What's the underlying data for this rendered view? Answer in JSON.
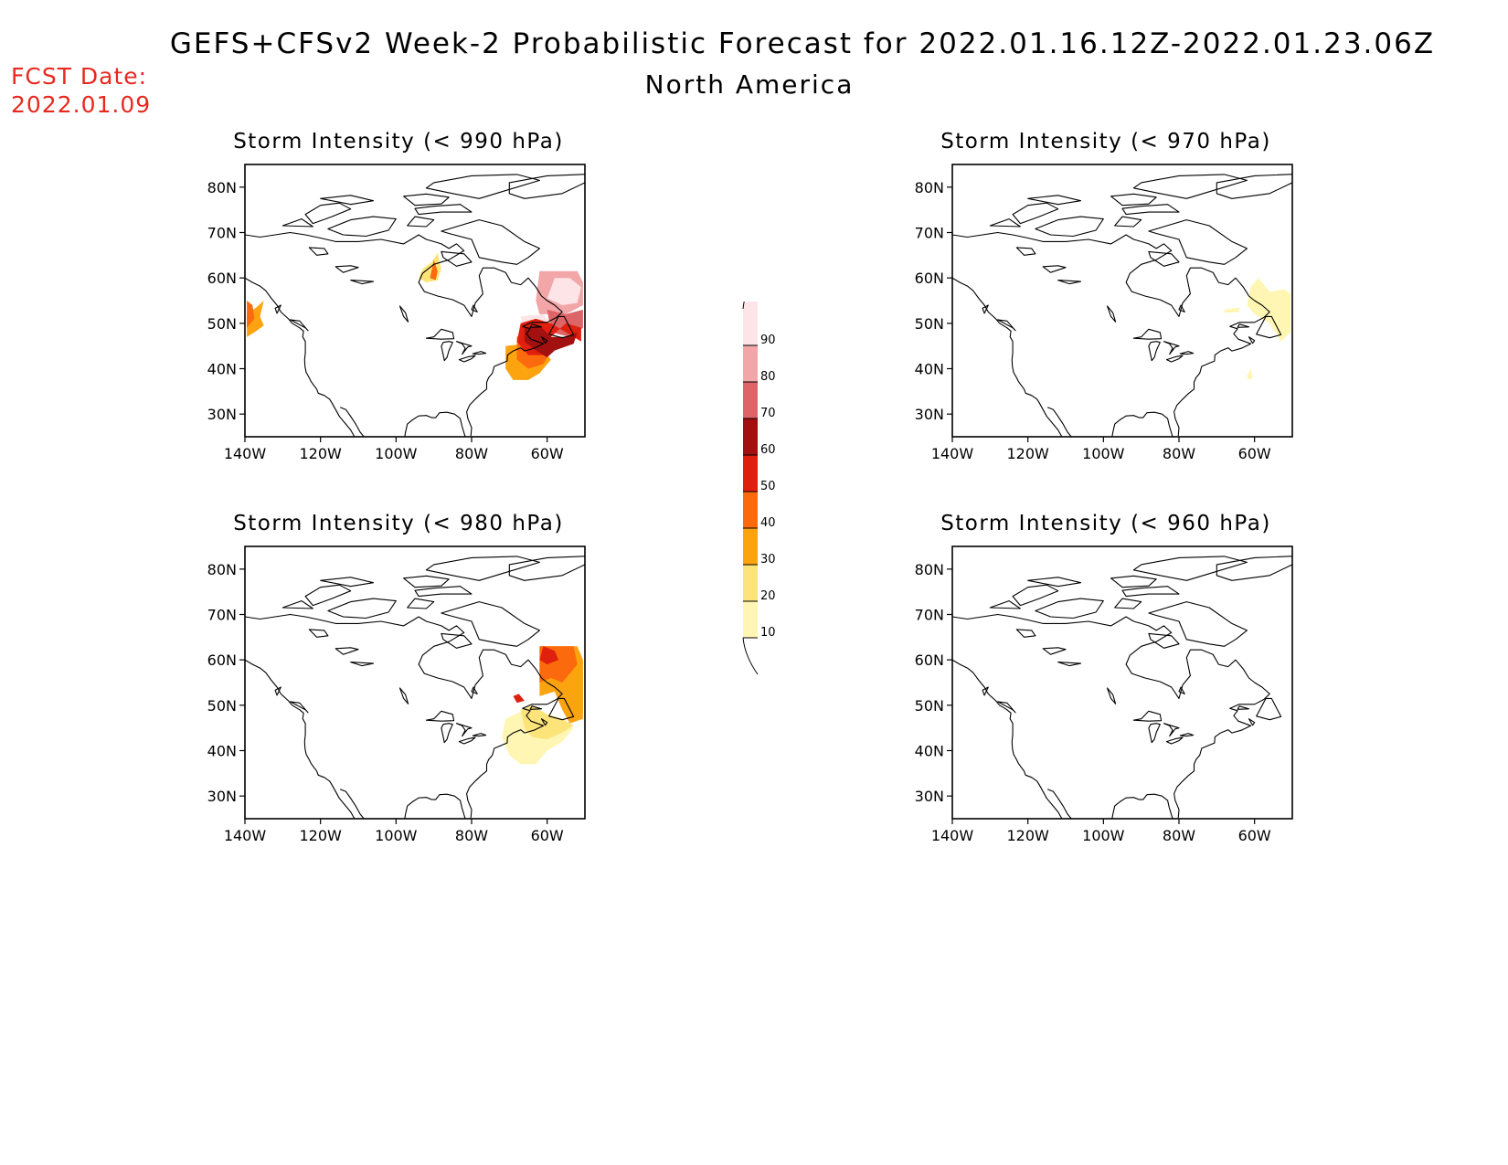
{
  "header": {
    "title": "GEFS+CFSv2 Week-2 Probabilistic Forecast for 2022.01.16.12Z-2022.01.23.06Z",
    "subtitle": "North America",
    "fcst_label": "FCST Date:",
    "fcst_date": "2022.01.09"
  },
  "colors": {
    "c10": "#fff6b3",
    "c20": "#fde47a",
    "c30": "#fca310",
    "c40": "#fb6a0c",
    "c50": "#e0200e",
    "c60": "#a31010",
    "c70": "#de6468",
    "c80": "#f2a6a8",
    "c90": "#fde4e6"
  },
  "colorbar": {
    "levels": [
      "10",
      "20",
      "30",
      "40",
      "50",
      "60",
      "70",
      "80",
      "90"
    ]
  },
  "map_axes": {
    "lat_labels": [
      "80N",
      "70N",
      "60N",
      "50N",
      "40N",
      "30N"
    ],
    "lon_labels": [
      "140W",
      "120W",
      "100W",
      "80W",
      "60W"
    ]
  },
  "panels": [
    {
      "id": "p990",
      "title": "Storm Intensity (< 990 hPa)",
      "regions": [
        {
          "level": "c30",
          "pts": [
            [
              -139.5,
              52
            ],
            [
              -137,
              53.5
            ],
            [
              -135,
              55
            ],
            [
              -136,
              51.5
            ],
            [
              -135,
              49.5
            ],
            [
              -137.5,
              48
            ],
            [
              -139.5,
              47
            ]
          ]
        },
        {
          "level": "c40",
          "pts": [
            [
              -139.5,
              55
            ],
            [
              -138,
              54
            ],
            [
              -137.5,
              51
            ],
            [
              -139.5,
              49
            ]
          ]
        },
        {
          "level": "c20",
          "pts": [
            [
              -93,
              62
            ],
            [
              -90.5,
              63.5
            ],
            [
              -89,
              65.5
            ],
            [
              -88,
              62
            ],
            [
              -89,
              59.5
            ],
            [
              -92,
              59
            ],
            [
              -94,
              60
            ]
          ]
        },
        {
          "level": "c40",
          "pts": [
            [
              -90,
              64
            ],
            [
              -89,
              61.5
            ],
            [
              -89.5,
              59.5
            ],
            [
              -91,
              60
            ]
          ]
        },
        {
          "level": "c80",
          "pts": [
            [
              -62,
              61.5
            ],
            [
              -52,
              61.5
            ],
            [
              -50.5,
              59
            ],
            [
              -50.5,
              54
            ],
            [
              -55,
              52
            ],
            [
              -62,
              52
            ],
            [
              -63,
              55
            ]
          ]
        },
        {
          "level": "c90",
          "pts": [
            [
              -60,
              55.5
            ],
            [
              -56,
              54
            ],
            [
              -52,
              54.5
            ],
            [
              -51,
              58
            ],
            [
              -54,
              60
            ],
            [
              -58,
              60
            ]
          ]
        },
        {
          "level": "c70",
          "pts": [
            [
              -60,
              53
            ],
            [
              -55,
              52
            ],
            [
              -50.5,
              53
            ],
            [
              -50.5,
              49
            ],
            [
              -54,
              47
            ],
            [
              -59,
              48
            ]
          ]
        },
        {
          "level": "c90",
          "pts": [
            [
              -67,
              51.5
            ],
            [
              -61,
              52
            ],
            [
              -59,
              50
            ],
            [
              -61,
              48.5
            ],
            [
              -66,
              48.5
            ]
          ]
        },
        {
          "level": "c30",
          "pts": [
            [
              -71,
              45
            ],
            [
              -66,
              45.5
            ],
            [
              -61,
              44
            ],
            [
              -59,
              42
            ],
            [
              -62,
              39
            ],
            [
              -65,
              37.5
            ],
            [
              -69,
              37.5
            ],
            [
              -71,
              40
            ]
          ]
        },
        {
          "level": "c40",
          "pts": [
            [
              -68,
              47
            ],
            [
              -65,
              48.5
            ],
            [
              -61,
              47
            ],
            [
              -59,
              44
            ],
            [
              -61,
              41
            ],
            [
              -65,
              40
            ],
            [
              -68,
              42
            ]
          ]
        },
        {
          "level": "c50",
          "pts": [
            [
              -67,
              50
            ],
            [
              -63,
              51
            ],
            [
              -59,
              50
            ],
            [
              -55,
              48
            ],
            [
              -51,
              46
            ],
            [
              -51,
              49
            ],
            [
              -55,
              50
            ],
            [
              -59,
              47
            ],
            [
              -61,
              43
            ],
            [
              -65,
              43
            ],
            [
              -68,
              46
            ]
          ]
        },
        {
          "level": "c60",
          "pts": [
            [
              -66,
              49
            ],
            [
              -62,
              49.5
            ],
            [
              -59,
              47
            ],
            [
              -55,
              47
            ],
            [
              -52,
              48
            ],
            [
              -53,
              45.5
            ],
            [
              -58,
              44
            ],
            [
              -60,
              42.5
            ],
            [
              -63,
              44
            ],
            [
              -66,
              46
            ]
          ]
        }
      ]
    },
    {
      "id": "p970",
      "title": "Storm Intensity (< 970 hPa)",
      "regions": [
        {
          "level": "c10",
          "pts": [
            [
              -61,
              58
            ],
            [
              -59,
              60
            ],
            [
              -56,
              57
            ],
            [
              -52,
              57.5
            ],
            [
              -50.5,
              56.5
            ],
            [
              -50.5,
              48
            ],
            [
              -53,
              46
            ],
            [
              -56,
              50
            ],
            [
              -60,
              52
            ],
            [
              -62,
              54
            ]
          ]
        },
        {
          "level": "c10",
          "pts": [
            [
              -68,
              53
            ],
            [
              -64,
              53.5
            ],
            [
              -64,
              52.5
            ],
            [
              -68,
              52.3
            ]
          ]
        },
        {
          "level": "c10",
          "pts": [
            [
              -62,
              38.5
            ],
            [
              -61,
              40
            ],
            [
              -60.5,
              38
            ],
            [
              -61.8,
              37.5
            ]
          ]
        }
      ]
    },
    {
      "id": "p980",
      "title": "Storm Intensity (< 980 hPa)",
      "regions": [
        {
          "level": "c30",
          "pts": [
            [
              -62,
              63
            ],
            [
              -52,
              63
            ],
            [
              -50.5,
              60
            ],
            [
              -50.5,
              47
            ],
            [
              -54,
              46
            ],
            [
              -56,
              49
            ],
            [
              -58,
              53
            ],
            [
              -62,
              52
            ]
          ]
        },
        {
          "level": "c40",
          "pts": [
            [
              -62,
              63
            ],
            [
              -53,
              63
            ],
            [
              -52,
              59
            ],
            [
              -56,
              55
            ],
            [
              -59,
              56
            ],
            [
              -62,
              55
            ]
          ]
        },
        {
          "level": "c50",
          "pts": [
            [
              -61,
              63
            ],
            [
              -58,
              62
            ],
            [
              -57,
              60
            ],
            [
              -60,
              59
            ],
            [
              -62,
              60
            ]
          ]
        },
        {
          "level": "c50",
          "pts": [
            [
              -69,
              52
            ],
            [
              -67.5,
              52.5
            ],
            [
              -66,
              51
            ],
            [
              -68,
              50.5
            ]
          ]
        },
        {
          "level": "c10",
          "pts": [
            [
              -71,
              47
            ],
            [
              -66,
              49
            ],
            [
              -61,
              48
            ],
            [
              -57,
              46
            ],
            [
              -53,
              45
            ],
            [
              -56,
              42
            ],
            [
              -60,
              40
            ],
            [
              -63,
              37
            ],
            [
              -67,
              37
            ],
            [
              -70,
              39
            ],
            [
              -72,
              43
            ]
          ]
        },
        {
          "level": "c20",
          "pts": [
            [
              -67,
              49
            ],
            [
              -64,
              50
            ],
            [
              -60,
              48
            ],
            [
              -56,
              47
            ],
            [
              -53,
              45.5
            ],
            [
              -56,
              44
            ],
            [
              -60,
              42.5
            ],
            [
              -64,
              43
            ],
            [
              -66,
              45
            ]
          ]
        }
      ]
    },
    {
      "id": "p960",
      "title": "Storm Intensity (< 960 hPa)",
      "regions": []
    }
  ]
}
